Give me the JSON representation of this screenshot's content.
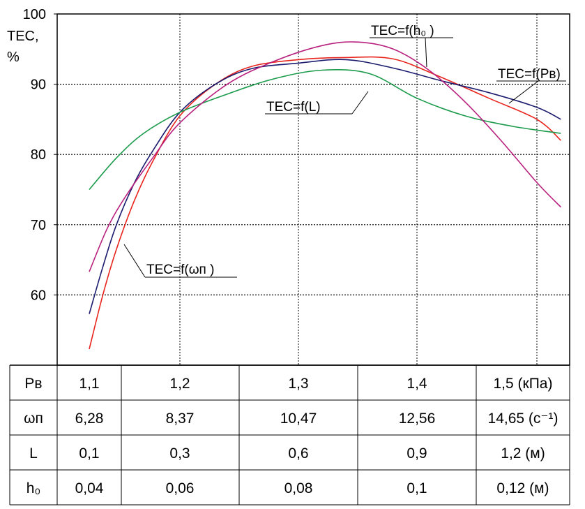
{
  "chart_data": {
    "type": "line",
    "ylabel_lines": [
      "TEC,",
      "%"
    ],
    "ylim": [
      50,
      100
    ],
    "yticks": [
      60,
      70,
      80,
      90,
      100
    ],
    "x_positions": [
      1,
      2,
      3,
      4,
      5
    ],
    "xlim": [
      0.9,
      5.35
    ],
    "grid": true,
    "series": [
      {
        "name": "TEC=f(ωп)",
        "color": "#e8241c",
        "x": [
          1,
          1.15,
          1.3,
          1.5,
          1.7,
          2.0,
          2.3,
          2.6,
          3.0,
          3.4,
          3.8,
          4.2,
          4.6,
          5.0,
          5.2
        ],
        "y": [
          52.3,
          60,
          66.5,
          73.5,
          79,
          85.5,
          90,
          92.5,
          93.5,
          93.8,
          93.6,
          91,
          88,
          85,
          82
        ]
      },
      {
        "name": "TEC=f(Pв)",
        "color": "#1a1a6e",
        "x": [
          1,
          1.15,
          1.3,
          1.5,
          1.7,
          2.0,
          2.3,
          2.6,
          3.0,
          3.4,
          3.8,
          4.2,
          4.6,
          5.0,
          5.2
        ],
        "y": [
          57.3,
          64,
          70,
          76,
          80.5,
          86,
          90,
          92.2,
          93,
          93.5,
          92.3,
          90.5,
          88.8,
          86.7,
          85
        ]
      },
      {
        "name": "TEC=f(L)",
        "color": "#1a9a4a",
        "x": [
          1,
          1.3,
          1.6,
          2.0,
          2.4,
          2.8,
          3.2,
          3.6,
          4.0,
          4.4,
          4.8,
          5.2
        ],
        "y": [
          75,
          79.5,
          83,
          86,
          88.6,
          90.8,
          92,
          91.5,
          88,
          85.5,
          84,
          83
        ]
      },
      {
        "name": "TEC=f(h₀)",
        "color": "#b8207e",
        "x": [
          1,
          1.2,
          1.4,
          1.7,
          2.0,
          2.4,
          2.8,
          3.2,
          3.5,
          3.8,
          4.1,
          4.4,
          4.7,
          5.0,
          5.2
        ],
        "y": [
          63.3,
          69.5,
          74,
          79.5,
          84.5,
          90,
          93.3,
          95.5,
          96,
          95,
          92,
          87.5,
          82,
          76,
          72.5
        ]
      }
    ],
    "annotations": [
      {
        "text": "TEC=f(h₀ )",
        "series": 3
      },
      {
        "text": "TEC=f(Pв)",
        "series": 1
      },
      {
        "text": "TEC=f(L)",
        "series": 2
      },
      {
        "text": "TEC=f(ωп )",
        "series": 0
      }
    ],
    "table": {
      "rows": [
        {
          "label": "Pв",
          "values": [
            "1,1",
            "1,2",
            "1,3",
            "1,4",
            "1,5 (кПа)"
          ]
        },
        {
          "label": "ωп",
          "values": [
            "6,28",
            "8,37",
            "10,47",
            "12,56",
            "14,65 (с⁻¹)"
          ]
        },
        {
          "label": "L",
          "values": [
            "0,1",
            "0,3",
            "0,6",
            "0,9",
            "1,2  (м)"
          ]
        },
        {
          "label": "h₀",
          "values": [
            "0,04",
            "0,06",
            "0,08",
            "0,1",
            "0,12 (м)"
          ]
        }
      ]
    }
  }
}
